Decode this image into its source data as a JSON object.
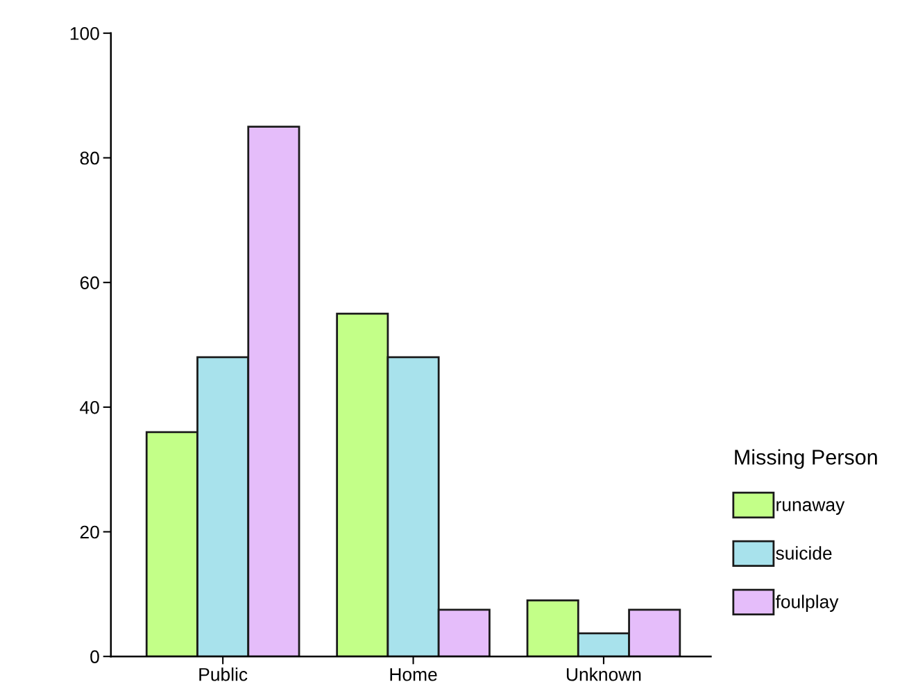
{
  "chart_data": {
    "type": "bar",
    "categories": [
      "Public",
      "Home",
      "Unknown"
    ],
    "series": [
      {
        "name": "runaway",
        "color": "#c3ff88",
        "values": [
          36,
          55,
          9
        ]
      },
      {
        "name": "suicide",
        "color": "#a8e2ec",
        "values": [
          48,
          48,
          3.7
        ]
      },
      {
        "name": "foulplay",
        "color": "#e5bdfa",
        "values": [
          85,
          7.5,
          7.5
        ]
      }
    ],
    "legend_title": "Missing Person",
    "legend": "right",
    "grid": false,
    "ylim": [
      0,
      100
    ],
    "yticks": [
      0,
      20,
      40,
      60,
      80,
      100
    ]
  }
}
